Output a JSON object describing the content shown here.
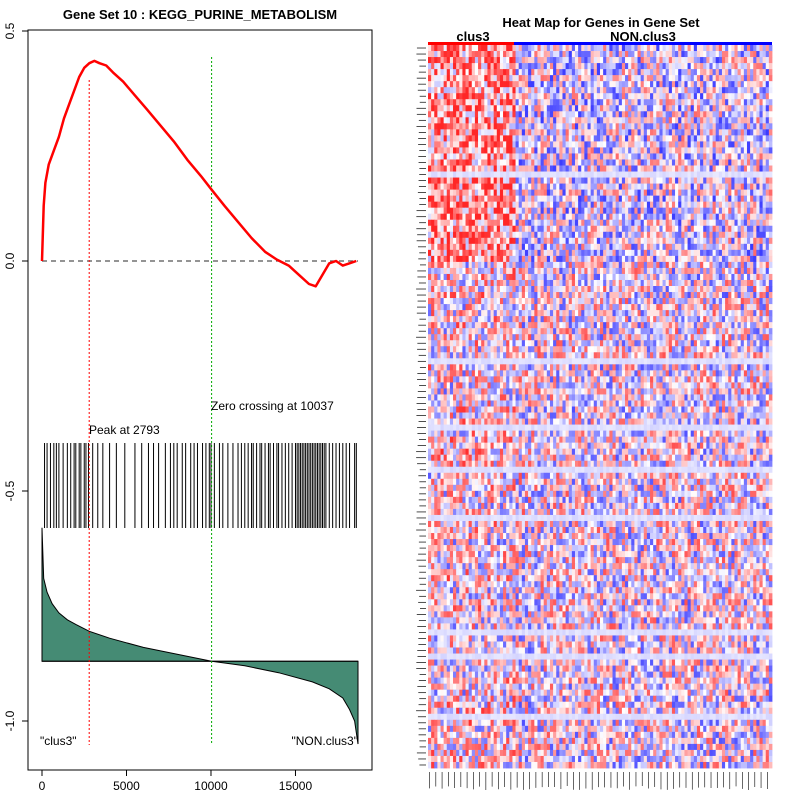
{
  "chart_data": [
    {
      "type": "line",
      "title": "Gene Set  10 : KEGG_PURINE_METABOLISM",
      "x_range": [
        0,
        18700
      ],
      "y_range": [
        -1.05,
        0.5
      ],
      "x_ticks": [
        0,
        5000,
        10000,
        15000
      ],
      "x_tick_labels": [
        "0",
        "5000",
        "10000",
        "15000"
      ],
      "y_ticks": [
        0.5,
        0.0,
        -0.5,
        -1.0
      ],
      "y_tick_labels": [
        "0.5",
        "0.0",
        "-0.5",
        "-1.0"
      ],
      "running_es": {
        "x": [
          0,
          100,
          200,
          400,
          700,
          1000,
          1300,
          1600,
          1900,
          2200,
          2500,
          2800,
          3100,
          3400,
          3800,
          4200,
          4800,
          5500,
          6200,
          7000,
          7800,
          8600,
          9400,
          10037,
          10800,
          11600,
          12400,
          13200,
          13900,
          14600,
          15200,
          15800,
          16200,
          16600,
          17000,
          17400,
          17800,
          18200,
          18600
        ],
        "y": [
          0,
          0.12,
          0.17,
          0.21,
          0.24,
          0.27,
          0.31,
          0.34,
          0.37,
          0.4,
          0.42,
          0.43,
          0.435,
          0.43,
          0.425,
          0.41,
          0.39,
          0.36,
          0.33,
          0.295,
          0.26,
          0.22,
          0.185,
          0.155,
          0.12,
          0.085,
          0.05,
          0.02,
          0.003,
          -0.01,
          -0.03,
          -0.05,
          -0.055,
          -0.03,
          -0.005,
          0.0,
          -0.01,
          -0.005,
          0.0
        ]
      },
      "peak": {
        "x": 2793,
        "label": "Peak at 2793"
      },
      "zero_crossing": {
        "x": 10037,
        "label": "Zero crossing at 10037"
      },
      "hit_positions": [
        150,
        300,
        500,
        700,
        850,
        1000,
        1250,
        1500,
        1700,
        1900,
        2000,
        2200,
        2300,
        2500,
        2600,
        2750,
        3000,
        3300,
        3600,
        4000,
        4400,
        4900,
        5500,
        5900,
        6300,
        6600,
        6900,
        7300,
        7600,
        7800,
        8000,
        8300,
        8500,
        8800,
        9000,
        9200,
        9500,
        9700,
        9900,
        10000,
        10200,
        10500,
        10700,
        11000,
        11300,
        11600,
        11800,
        12000,
        12200,
        12400,
        12500,
        12700,
        12900,
        13000,
        13200,
        13400,
        13500,
        13700,
        13900,
        14000,
        14200,
        14400,
        14600,
        14800,
        15000,
        15100,
        15200,
        15300,
        15400,
        15500,
        15600,
        15700,
        15800,
        15900,
        16000,
        16100,
        16200,
        16300,
        16400,
        16500,
        16600,
        16700,
        16800,
        17000,
        17200,
        17400,
        17600,
        17800,
        18000,
        18200,
        18500,
        18600
      ],
      "ranked_metric": {
        "x": [
          0,
          100,
          300,
          600,
          1000,
          1500,
          2000,
          2800,
          4000,
          6000,
          8000,
          10037,
          12000,
          14000,
          16000,
          17000,
          17800,
          18200,
          18500,
          18700
        ],
        "y": [
          -0.58,
          -0.69,
          -0.72,
          -0.745,
          -0.765,
          -0.78,
          -0.79,
          -0.805,
          -0.82,
          -0.84,
          -0.855,
          -0.87,
          -0.88,
          -0.895,
          -0.915,
          -0.93,
          -0.95,
          -0.975,
          -1.0,
          -1.05
        ]
      },
      "baseline_metric": -0.87,
      "left_label": "\"clus3\"",
      "right_label": "\"NON.clus3\"",
      "colors": {
        "es_line": "#ff0000",
        "peak_line": "#ff0000",
        "zero_line": "#00aa00",
        "area": "#458b74",
        "hits": "#000000"
      }
    },
    {
      "type": "heatmap",
      "title": "Heat Map for Genes in Gene Set",
      "groups": [
        {
          "name": "clus3",
          "color": "#ff0000",
          "fraction": 0.25
        },
        {
          "name": "NON.clus3",
          "color": "#0000ff",
          "fraction": 0.75
        }
      ],
      "n_rows": 120,
      "n_cols": 110,
      "colors": {
        "high": "#ff0000",
        "low": "#0000ff",
        "mid": "#ffffff"
      }
    }
  ]
}
